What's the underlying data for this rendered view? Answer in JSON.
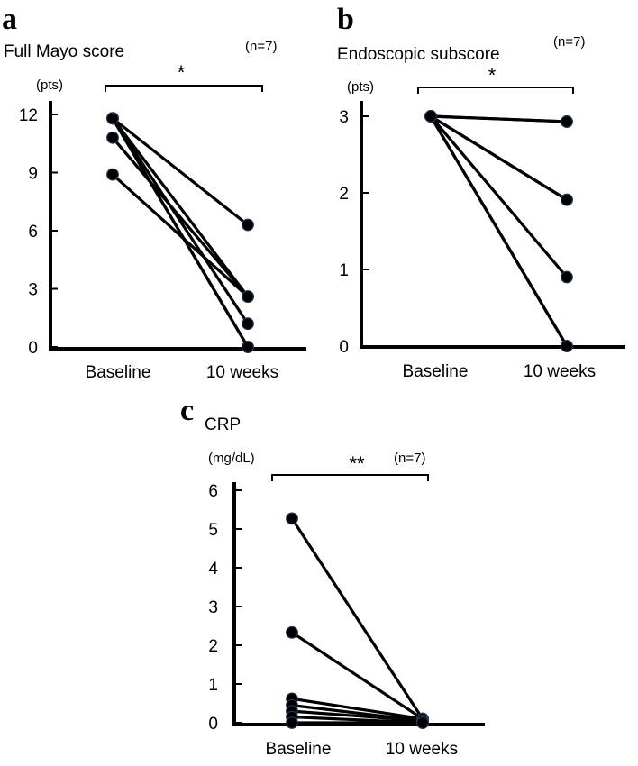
{
  "chart_data": [
    {
      "type": "line",
      "panel": "a",
      "title": "Full Mayo score",
      "n_label": "(n=7)",
      "unit_label": "(pts)",
      "significance": "*",
      "categories": [
        "Baseline",
        "10 weeks"
      ],
      "yticks": [
        0,
        3,
        6,
        9,
        12
      ],
      "ylim": [
        0,
        12
      ],
      "pairs": [
        [
          11.8,
          6.3
        ],
        [
          11.8,
          2.6
        ],
        [
          11.8,
          1.2
        ],
        [
          11.8,
          0.0
        ],
        [
          11.8,
          0.0
        ],
        [
          10.8,
          2.6
        ],
        [
          8.9,
          2.6
        ]
      ]
    },
    {
      "type": "line",
      "panel": "b",
      "title": "Endoscopic subscore",
      "n_label": "(n=7)",
      "unit_label": "(pts)",
      "significance": "*",
      "categories": [
        "Baseline",
        "10 weeks"
      ],
      "yticks": [
        0,
        1,
        2,
        3
      ],
      "ylim": [
        0,
        3
      ],
      "pairs": [
        [
          3,
          2.93
        ],
        [
          3,
          2.93
        ],
        [
          3,
          1.91
        ],
        [
          3,
          1.91
        ],
        [
          3,
          0.9
        ],
        [
          3,
          0.0
        ],
        [
          3,
          0.0
        ]
      ]
    },
    {
      "type": "line",
      "panel": "c",
      "title": "CRP",
      "n_label": "(n=7)",
      "unit_label": "(mg/dL)",
      "significance": "**",
      "categories": [
        "Baseline",
        "10 weeks"
      ],
      "yticks": [
        0,
        1,
        2,
        3,
        4,
        5,
        6
      ],
      "ylim": [
        0,
        6
      ],
      "pairs": [
        [
          5.27,
          0.1
        ],
        [
          2.33,
          0.1
        ],
        [
          0.62,
          0.1
        ],
        [
          0.45,
          0.05
        ],
        [
          0.3,
          0.05
        ],
        [
          0.15,
          0.0
        ],
        [
          0.0,
          0.0
        ]
      ]
    }
  ]
}
